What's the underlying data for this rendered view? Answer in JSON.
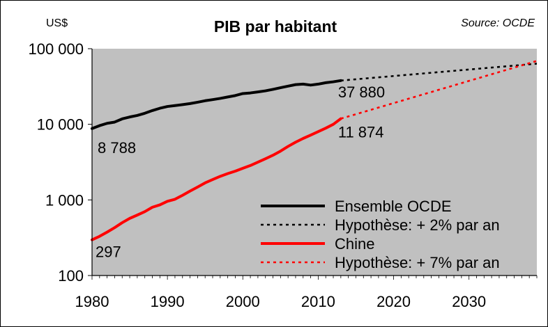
{
  "chart_data": {
    "type": "line",
    "title": "PIB par habitant",
    "unit_label": "US$",
    "source": "Source: OCDE",
    "y_scale": "log",
    "ylim": [
      100,
      100000
    ],
    "xlim": [
      1980,
      2039
    ],
    "y_ticks": [
      100,
      1000,
      10000,
      100000
    ],
    "y_tick_labels": [
      "100",
      "1 000",
      "10 000",
      "100 000"
    ],
    "x_ticks": [
      1980,
      1990,
      2000,
      2010,
      2020,
      2030
    ],
    "x_tick_labels": [
      "1980",
      "1990",
      "2000",
      "2010",
      "2020",
      "2030"
    ],
    "grid": false,
    "plot_background": "#c0c0c0",
    "legend_position": "bottom-right",
    "series": [
      {
        "name": "Ensemble OCDE",
        "color": "#000000",
        "style": "solid",
        "x": [
          1980,
          1981,
          1982,
          1983,
          1984,
          1985,
          1986,
          1987,
          1988,
          1989,
          1990,
          1991,
          1992,
          1993,
          1994,
          1995,
          1996,
          1997,
          1998,
          1999,
          2000,
          2001,
          2002,
          2003,
          2004,
          2005,
          2006,
          2007,
          2008,
          2009,
          2010,
          2011,
          2012,
          2013
        ],
        "y": [
          8788,
          9600,
          10300,
          10700,
          11800,
          12500,
          13100,
          14000,
          15200,
          16300,
          17200,
          17700,
          18200,
          18800,
          19600,
          20500,
          21200,
          22000,
          23000,
          24000,
          25500,
          26000,
          26800,
          27700,
          29000,
          30500,
          32000,
          33500,
          34000,
          33000,
          34000,
          35500,
          36500,
          37880
        ]
      },
      {
        "name": "Hypothèse: + 2% par an",
        "color": "#000000",
        "style": "dotted",
        "x": [
          2013,
          2039
        ],
        "y": [
          37880,
          63400
        ]
      },
      {
        "name": "Chine",
        "color": "#ff0000",
        "style": "solid",
        "x": [
          1980,
          1981,
          1982,
          1983,
          1984,
          1985,
          1986,
          1987,
          1988,
          1989,
          1990,
          1991,
          1992,
          1993,
          1994,
          1995,
          1996,
          1997,
          1998,
          1999,
          2000,
          2001,
          2002,
          2003,
          2004,
          2005,
          2006,
          2007,
          2008,
          2009,
          2010,
          2011,
          2012,
          2013
        ],
        "y": [
          297,
          330,
          375,
          430,
          500,
          570,
          630,
          700,
          800,
          860,
          960,
          1020,
          1150,
          1310,
          1480,
          1680,
          1860,
          2050,
          2230,
          2400,
          2620,
          2850,
          3160,
          3500,
          3900,
          4420,
          5100,
          5800,
          6500,
          7200,
          8000,
          8900,
          10000,
          11874
        ]
      },
      {
        "name": "Hypothèse: + 7% par an",
        "color": "#ff0000",
        "style": "dotted",
        "x": [
          2013,
          2039
        ],
        "y": [
          11874,
          68900
        ]
      }
    ],
    "annotations": [
      {
        "text": "37 880",
        "x": 2013,
        "y": 37880
      },
      {
        "text": "8 788",
        "x": 1980,
        "y": 8788
      },
      {
        "text": "11 874",
        "x": 2013,
        "y": 11874
      },
      {
        "text": "297",
        "x": 1980,
        "y": 297
      }
    ]
  }
}
